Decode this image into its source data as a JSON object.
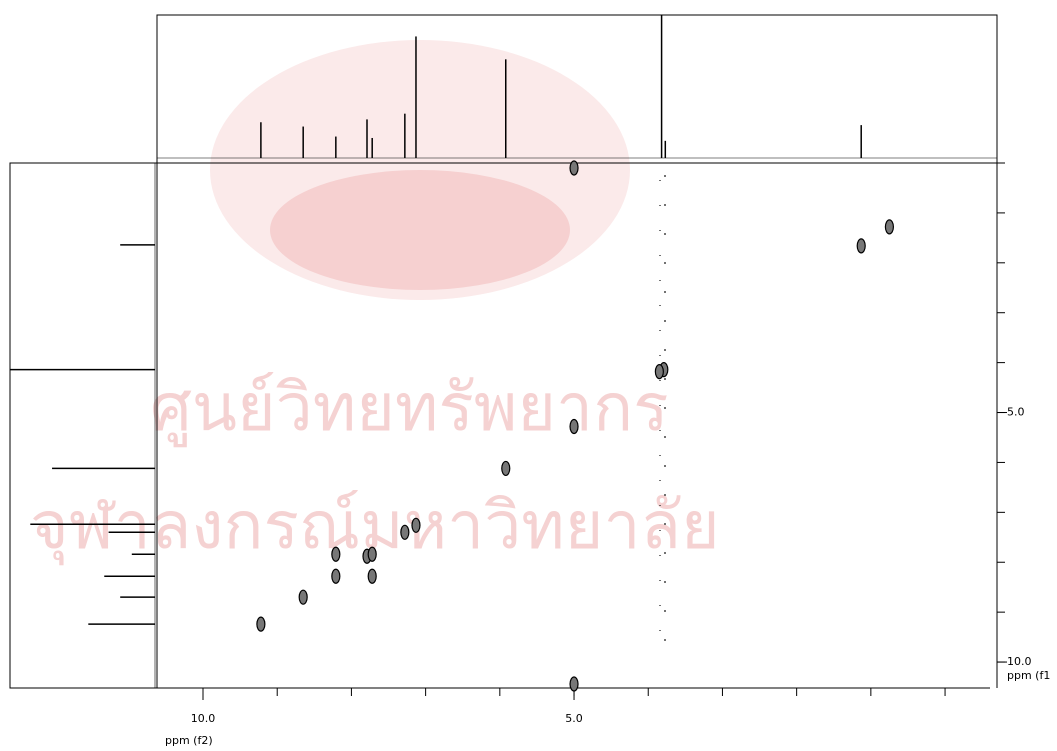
{
  "chart_data": {
    "type": "scatter",
    "xlabel": "ppm (f2)",
    "ylabel": "ppm (f1",
    "xlim": [
      10.62,
      -0.7
    ],
    "ylim": [
      0,
      10.52
    ],
    "xticks": [
      {
        "value": 10,
        "label": "10.0"
      },
      {
        "value": 5,
        "label": "5.0"
      }
    ],
    "yticks": [
      {
        "value": 5,
        "label": "5.0"
      },
      {
        "value": 10,
        "label": "10.0"
      }
    ],
    "xminor_ticks": [
      10,
      9,
      8,
      7,
      6,
      5,
      4,
      3,
      2,
      1,
      0
    ],
    "yminor_ticks": [
      0,
      1,
      2,
      3,
      4,
      5,
      6,
      7,
      8,
      9,
      10
    ],
    "color": "#777777",
    "x": [
      9.22,
      8.65,
      8.21,
      8.21,
      7.79,
      7.72,
      7.72,
      7.28,
      7.13,
      5.92,
      5.0,
      3.79,
      3.85,
      1.13,
      0.75,
      5.0,
      5.0
    ],
    "values": [
      9.24,
      8.7,
      8.28,
      7.84,
      7.88,
      8.28,
      7.84,
      7.4,
      7.26,
      6.12,
      5.28,
      4.14,
      4.18,
      1.66,
      1.28,
      0.1,
      10.44
    ],
    "top_projection": {
      "x": [
        9.22,
        8.65,
        8.21,
        7.79,
        7.72,
        7.28,
        7.13,
        5.92,
        3.82,
        3.77,
        1.13
      ],
      "values": [
        25,
        22,
        15,
        27,
        14,
        31,
        85,
        69,
        100,
        12,
        23
      ]
    },
    "left_projection": {
      "y": [
        1.64,
        4.14,
        6.12,
        7.24,
        7.4,
        7.84,
        8.28,
        8.7,
        9.24
      ],
      "values": [
        24,
        100,
        71,
        86,
        32,
        16,
        35,
        24,
        46
      ]
    },
    "watermark": [
      "ศูนย์วิทยทรัพยากร",
      "จุฬาลงกรณ์มหาวิทยาลัย"
    ]
  }
}
